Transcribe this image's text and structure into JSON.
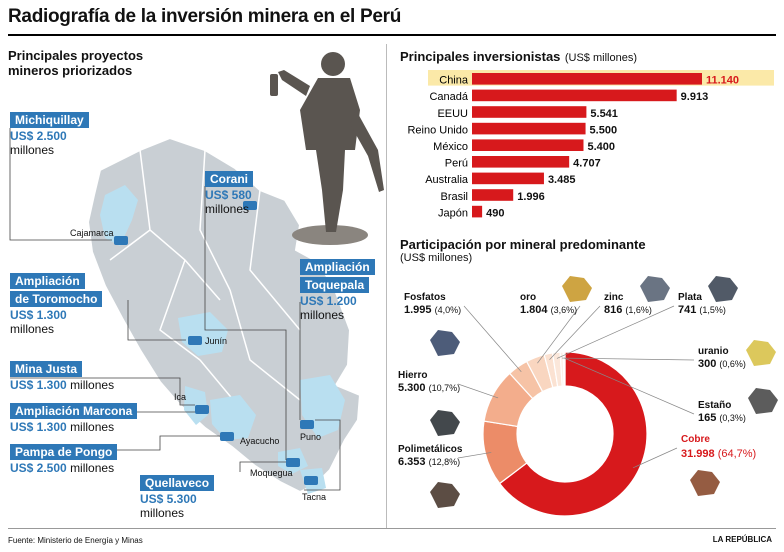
{
  "title": "Radiografía de la inversión minera en el Perú",
  "left_panel": {
    "heading_line1": "Principales proyectos",
    "heading_line2": "mineros priorizados",
    "projects": [
      {
        "name_lines": [
          "Michiquillay"
        ],
        "amount": "US$ 2.500",
        "unit": "millones"
      },
      {
        "name_lines": [
          "Corani"
        ],
        "amount": "US$ 580",
        "unit": "millones"
      },
      {
        "name_lines": [
          "Ampliación",
          "Toquepala"
        ],
        "amount": "US$ 1.200",
        "unit": "millones"
      },
      {
        "name_lines": [
          "Ampliación",
          "de Toromocho"
        ],
        "amount": "US$ 1.300",
        "unit": "millones"
      },
      {
        "name_lines": [
          "Mina Justa"
        ],
        "amount": "US$ 1.300",
        "unit": "millones"
      },
      {
        "name_lines": [
          "Ampliación Marcona"
        ],
        "amount": "US$ 1.300",
        "unit": "millones"
      },
      {
        "name_lines": [
          "Pampa de Pongo"
        ],
        "amount": "US$ 2.500",
        "unit": "millones"
      },
      {
        "name_lines": [
          "Quellaveco"
        ],
        "amount": "US$ 5.300",
        "unit": "millones"
      }
    ],
    "cities": [
      "Cajamarca",
      "Junín",
      "Ica",
      "Ayacucho",
      "Puno",
      "Moquegua",
      "Tacna"
    ]
  },
  "chart_data": [
    {
      "type": "bar",
      "orientation": "horizontal",
      "title": "Principales inversionistas",
      "title_unit": "(US$ millones)",
      "categories": [
        "China",
        "Canadá",
        "EEUU",
        "Reino Unido",
        "México",
        "Perú",
        "Australia",
        "Brasil",
        "Japón"
      ],
      "values": [
        11140,
        9913,
        5541,
        5500,
        5400,
        4707,
        3485,
        1996,
        490
      ],
      "value_labels": [
        "11.140",
        "9.913",
        "5.541",
        "5.500",
        "5.400",
        "4.707",
        "3.485",
        "1.996",
        "490"
      ],
      "highlight": "China",
      "colors": {
        "bar": "#d7191c",
        "highlight_bg": "#fbe9a8",
        "highlight_text": "#d7191c"
      }
    },
    {
      "type": "pie",
      "style": "donut",
      "title": "Participación por mineral predominante",
      "title_unit": "(US$ millones)",
      "categories": [
        "Cobre",
        "Polimetálicos",
        "Hierro",
        "Fosfatos",
        "Oro",
        "Zinc",
        "Plata",
        "Uranio",
        "Estaño"
      ],
      "values": [
        31998,
        6353,
        5300,
        1995,
        1804,
        816,
        741,
        300,
        165
      ],
      "value_labels": [
        "31.998",
        "6.353",
        "5.300",
        "1.995",
        "1.804",
        "816",
        "741",
        "300",
        "165"
      ],
      "percent_labels": [
        "(64,7%)",
        "(12,8%)",
        "(10,7%)",
        "(4,0%)",
        "(3,6%)",
        "(1,6%)",
        "(1,5%)",
        "(0,6%)",
        "(0,3%)"
      ],
      "display_names": [
        "Cobre",
        "Polimetálicos",
        "Hierro",
        "Fosfatos",
        "oro",
        "zinc",
        "Plata",
        "uranio",
        "Estaño"
      ],
      "colors": [
        "#d7191c",
        "#ec8c68",
        "#f3ad8c",
        "#f6c3a6",
        "#f9d6c0",
        "#fbe2d2",
        "#fbe7da",
        "#fdf0e8",
        "#fdf4ee"
      ]
    }
  ],
  "footer": {
    "source": "Fuente: Ministerio de Energía y Minas",
    "brand": "LA REPÚBLICA"
  }
}
